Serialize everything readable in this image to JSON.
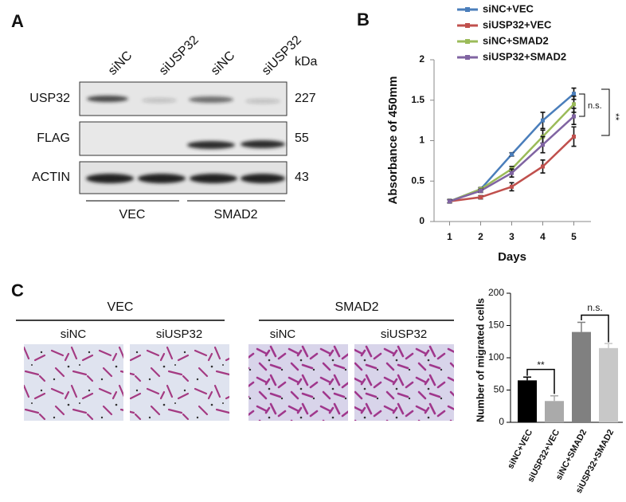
{
  "panel_labels": [
    "A",
    "B",
    "C"
  ],
  "blot": {
    "lanes": [
      "siNC",
      "siUSP32",
      "siNC",
      "siUSP32"
    ],
    "unit": "kDa",
    "rows": [
      {
        "name": "USP32",
        "kda": 227
      },
      {
        "name": "FLAG",
        "kda": 55
      },
      {
        "name": "ACTIN",
        "kda": 43
      }
    ],
    "groups": [
      "VEC",
      "SMAD2"
    ]
  },
  "migration": {
    "groups": [
      {
        "name": "VEC",
        "lanes": [
          "siNC",
          "siUSP32"
        ]
      },
      {
        "name": "SMAD2",
        "lanes": [
          "siNC",
          "siUSP32"
        ]
      }
    ]
  },
  "chart_data": [
    {
      "type": "line",
      "x_label": "Days",
      "y_label": "Absorbance of 450mm",
      "x": [
        1,
        2,
        3,
        4,
        5
      ],
      "xlim": [
        0.5,
        5.5
      ],
      "xticks": [
        1,
        2,
        3,
        4,
        5
      ],
      "ylim": [
        0,
        2
      ],
      "yticks": [
        0,
        0.5,
        1,
        1.5,
        2
      ],
      "series": [
        {
          "name": "siNC+VEC",
          "color": "#4a7ebb",
          "values": [
            0.25,
            0.4,
            0.83,
            1.25,
            1.58
          ],
          "errors": [
            0.02,
            0.02,
            0.02,
            0.1,
            0.07
          ]
        },
        {
          "name": "siUSP32+VEC",
          "color": "#c0504d",
          "values": [
            0.25,
            0.3,
            0.43,
            0.68,
            1.05
          ],
          "errors": [
            0.02,
            0.02,
            0.05,
            0.08,
            0.12
          ]
        },
        {
          "name": "siNC+SMAD2",
          "color": "#9bbb59",
          "values": [
            0.25,
            0.4,
            0.65,
            1.05,
            1.45
          ],
          "errors": [
            0.02,
            0.02,
            0.03,
            0.08,
            0.1
          ]
        },
        {
          "name": "siUSP32+SMAD2",
          "color": "#8064a2",
          "values": [
            0.25,
            0.38,
            0.6,
            0.95,
            1.3
          ],
          "errors": [
            0.02,
            0.02,
            0.05,
            0.1,
            0.1
          ]
        }
      ],
      "annotations": [
        "n.s.",
        "**"
      ]
    },
    {
      "type": "bar",
      "y_label": "Number of migrated cells",
      "categories": [
        "siNC+VEC",
        "siUSP32+VEC",
        "siNC+SMAD2",
        "siUSP32+SMAD2"
      ],
      "values": [
        65,
        33,
        140,
        115
      ],
      "errors": [
        5,
        8,
        15,
        7
      ],
      "colors": [
        "#000000",
        "#aaaaaa",
        "#808080",
        "#c8c8c8"
      ],
      "ylim": [
        0,
        200
      ],
      "yticks": [
        0,
        50,
        100,
        150,
        200
      ],
      "annotations": [
        "**",
        "n.s."
      ]
    }
  ]
}
